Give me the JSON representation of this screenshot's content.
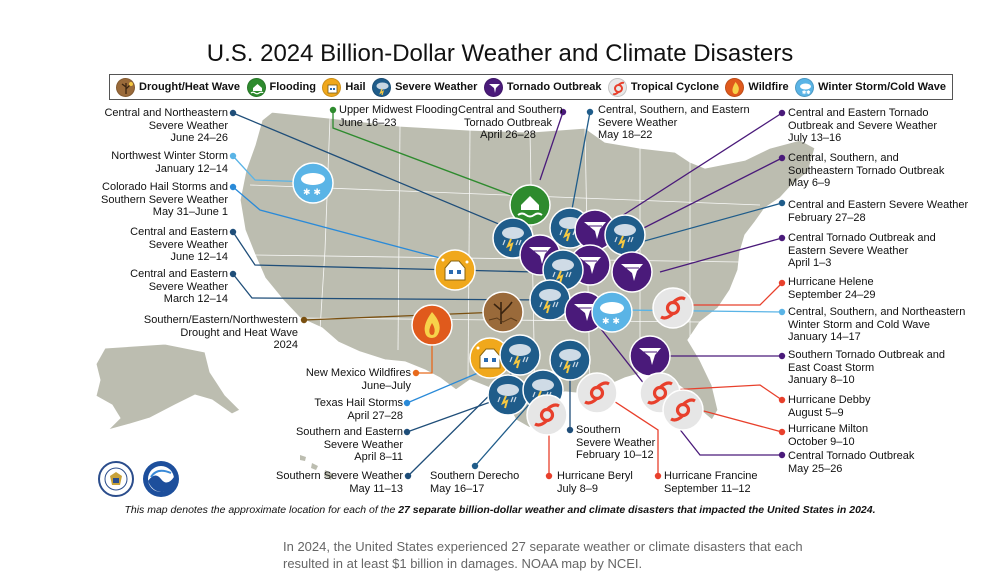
{
  "title": "U.S. 2024 Billion-Dollar Weather and Climate Disasters",
  "legend": [
    {
      "label": "Drought/Heat Wave",
      "icon": "drought-icon",
      "color": "#8a5a2c"
    },
    {
      "label": "Flooding",
      "icon": "flooding-icon",
      "color": "#2e8b2e"
    },
    {
      "label": "Hail",
      "icon": "hail-icon",
      "color": "#f0a81c"
    },
    {
      "label": "Severe Weather",
      "icon": "severe-weather-icon",
      "color": "#1f5c8a"
    },
    {
      "label": "Tornado Outbreak",
      "icon": "tornado-icon",
      "color": "#4a1a7a"
    },
    {
      "label": "Tropical Cyclone",
      "icon": "tropical-cyclone-icon",
      "color": "#e8402c"
    },
    {
      "label": "Wildfire",
      "icon": "wildfire-icon",
      "color": "#e05a1c"
    },
    {
      "label": "Winter Storm/Cold Wave",
      "icon": "winter-storm-icon",
      "color": "#5ab4e6"
    }
  ],
  "events": {
    "e1": {
      "line1": "Central and Northeastern",
      "line2": "Severe Weather",
      "line3": "June 24–26"
    },
    "e2": {
      "line1": "Northwest Winter Storm",
      "line2": "January 12–14"
    },
    "e3": {
      "line1": "Colorado Hail Storms and",
      "line2": "Southern Severe Weather",
      "line3": "May 31–June 1"
    },
    "e4": {
      "line1": "Central and Eastern",
      "line2": "Severe Weather",
      "line3": "June 12–14"
    },
    "e5": {
      "line1": "Central and Eastern",
      "line2": "Severe Weather",
      "line3": "March 12–14"
    },
    "e6": {
      "line1": "Southern/Eastern/Northwestern",
      "line2": "Drought and Heat Wave",
      "line3": "2024"
    },
    "e7": {
      "line1": "Upper Midwest Flooding",
      "line2": "June 16–23"
    },
    "e8": {
      "line1": "Central and Southern",
      "line2": "Tornado Outbreak",
      "line3": "April 26–28"
    },
    "e9": {
      "line1": "Central, Southern, and Eastern",
      "line2": "Severe Weather",
      "line3": "May 18–22"
    },
    "e10": {
      "line1": "Central and Eastern Tornado",
      "line2": "Outbreak and Severe Weather",
      "line3": "July 13–16"
    },
    "e11": {
      "line1": "Central, Southern, and",
      "line2": "Southeastern Tornado Outbreak",
      "line3": "May 6–9"
    },
    "e12": {
      "line1": "Central and Eastern Severe Weather",
      "line2": "February 27–28"
    },
    "e13": {
      "line1": "Central Tornado Outbreak and",
      "line2": "Eastern Severe Weather",
      "line3": "April 1–3"
    },
    "e14": {
      "line1": "Hurricane Helene",
      "line2": "September 24–29"
    },
    "e15": {
      "line1": "Central, Southern, and Northeastern",
      "line2": "Winter Storm and Cold Wave",
      "line3": "January 14–17"
    },
    "e16": {
      "line1": "Southern Tornado Outbreak and",
      "line2": "East Coast Storm",
      "line3": "January 8–10"
    },
    "e17": {
      "line1": "Hurricane Debby",
      "line2": "August 5–9"
    },
    "e18": {
      "line1": "Hurricane Milton",
      "line2": "October 9–10"
    },
    "e19": {
      "line1": "Central Tornado Outbreak",
      "line2": "May 25–26"
    },
    "e20": {
      "line1": "New Mexico Wildfires",
      "line2": "June–July"
    },
    "e21": {
      "line1": "Texas Hail Storms",
      "line2": "April 27–28"
    },
    "e22": {
      "line1": "Southern and Eastern",
      "line2": "Severe Weather",
      "line3": "April 8–11"
    },
    "e23": {
      "line1": "Southern Severe Weather",
      "line2": "May 11–13"
    },
    "e24": {
      "line1": "Southern Derecho",
      "line2": "May 16–17"
    },
    "e25": {
      "line1": "Hurricane Beryl",
      "line2": "July 8–9"
    },
    "e26": {
      "line1": "Southern",
      "line2": "Severe Weather",
      "line3": "February 10–12"
    },
    "e27": {
      "line1": "Hurricane Francine",
      "line2": "September 11–12"
    }
  },
  "note_prefix": "This map denotes the approximate location for each of the ",
  "note_bold": "27 separate billion-dollar weather and climate disasters that impacted the United States in 2024.",
  "caption": "In 2024, the United States experienced 27 separate weather or climate disasters that each resulted in at least $1 billion in damages. NOAA map by NCEI.",
  "logos": {
    "left": "doc-seal-logo",
    "right": "noaa-logo"
  }
}
